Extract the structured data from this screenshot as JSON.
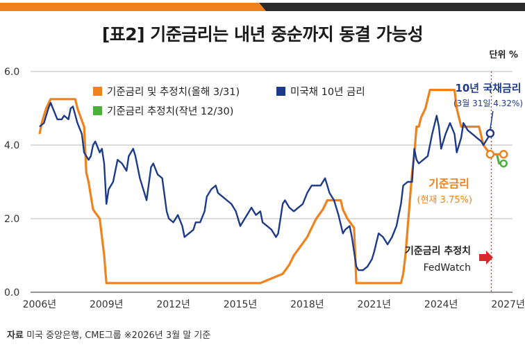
{
  "chart_data": {
    "type": "line",
    "title": "[표2] 기준금리는 내년 중순까지 동결 가능성",
    "unit_label": "단위 %",
    "xlabel": "",
    "ylabel": "",
    "ylim": [
      0,
      6
    ],
    "xlim": [
      2005.6,
      2027.2
    ],
    "yticks": [
      "0.0",
      "2.0",
      "4.0",
      "6.0"
    ],
    "xticks": [
      {
        "x": 2006,
        "label": "2006년"
      },
      {
        "x": 2009,
        "label": "2009년"
      },
      {
        "x": 2012,
        "label": "2012년"
      },
      {
        "x": 2015,
        "label": "2015년"
      },
      {
        "x": 2018,
        "label": "2018년"
      },
      {
        "x": 2021,
        "label": "2021년"
      },
      {
        "x": 2024,
        "label": "2024년"
      },
      {
        "x": 2027,
        "label": "2027년"
      }
    ],
    "grid": "horizontal",
    "legend_position": "top-left",
    "source": "미국 중앙은행, CME그룹  ※2026년 3월 말 기준",
    "source_label": "자료",
    "series": [
      {
        "name": "기준금리 및 추정치(올해 3/31)",
        "color": "#f0821e",
        "x": [
          2006.0,
          2006.1,
          2006.3,
          2006.5,
          2007.6,
          2007.7,
          2008.0,
          2008.1,
          2008.2,
          2008.4,
          2008.7,
          2008.9,
          2009.0,
          2015.9,
          2016.9,
          2017.2,
          2017.4,
          2017.7,
          2018.0,
          2018.2,
          2018.4,
          2018.7,
          2018.9,
          2019.5,
          2019.6,
          2019.8,
          2020.1,
          2020.2,
          2022.2,
          2022.3,
          2022.4,
          2022.5,
          2022.6,
          2022.7,
          2022.8,
          2022.9,
          2023.0,
          2023.1,
          2023.3,
          2023.5,
          2024.6,
          2024.7,
          2024.9,
          2025.7,
          2025.9,
          2026.2
        ],
        "y": [
          4.3,
          4.6,
          5.0,
          5.25,
          5.25,
          5.0,
          4.5,
          3.25,
          3.0,
          2.25,
          2.0,
          1.0,
          0.25,
          0.25,
          0.5,
          0.75,
          1.0,
          1.25,
          1.5,
          1.75,
          2.0,
          2.25,
          2.5,
          2.5,
          2.25,
          2.0,
          1.75,
          0.25,
          0.25,
          0.5,
          1.0,
          1.75,
          2.5,
          3.25,
          3.75,
          4.5,
          4.5,
          4.75,
          5.0,
          5.5,
          5.5,
          5.0,
          4.5,
          4.5,
          4.0,
          3.75
        ]
      },
      {
        "name": "미국채 10년 금리",
        "color": "#1d3a8a",
        "x": [
          2006.0,
          2006.2,
          2006.4,
          2006.5,
          2006.6,
          2006.8,
          2007.0,
          2007.1,
          2007.3,
          2007.4,
          2007.5,
          2007.7,
          2007.9,
          2008.0,
          2008.2,
          2008.3,
          2008.4,
          2008.5,
          2008.7,
          2008.8,
          2008.9,
          2009.0,
          2009.1,
          2009.3,
          2009.5,
          2009.7,
          2009.9,
          2010.0,
          2010.2,
          2010.3,
          2010.5,
          2010.7,
          2010.8,
          2011.0,
          2011.1,
          2011.3,
          2011.5,
          2011.7,
          2011.8,
          2012.0,
          2012.2,
          2012.4,
          2012.5,
          2012.7,
          2012.9,
          2013.0,
          2013.2,
          2013.4,
          2013.5,
          2013.7,
          2013.9,
          2014.0,
          2014.2,
          2014.4,
          2014.6,
          2014.8,
          2015.0,
          2015.2,
          2015.4,
          2015.5,
          2015.7,
          2015.9,
          2016.0,
          2016.2,
          2016.4,
          2016.6,
          2016.7,
          2016.9,
          2017.0,
          2017.2,
          2017.4,
          2017.6,
          2017.8,
          2018.0,
          2018.2,
          2018.4,
          2018.6,
          2018.8,
          2018.9,
          2019.0,
          2019.2,
          2019.4,
          2019.6,
          2019.7,
          2019.9,
          2020.0,
          2020.2,
          2020.3,
          2020.5,
          2020.7,
          2020.9,
          2021.0,
          2021.2,
          2021.4,
          2021.6,
          2021.8,
          2022.0,
          2022.2,
          2022.3,
          2022.5,
          2022.7,
          2022.8,
          2022.9,
          2023.0,
          2023.2,
          2023.4,
          2023.6,
          2023.8,
          2023.9,
          2024.0,
          2024.2,
          2024.4,
          2024.6,
          2024.7,
          2024.9,
          2025.0,
          2025.2,
          2025.4,
          2025.6,
          2025.8,
          2025.9,
          2026.0,
          2026.1,
          2026.2
        ],
        "y": [
          4.5,
          4.6,
          5.0,
          5.15,
          5.0,
          4.7,
          4.7,
          4.8,
          4.7,
          5.0,
          5.05,
          4.6,
          4.3,
          3.8,
          3.6,
          3.7,
          4.0,
          4.1,
          3.8,
          3.9,
          3.5,
          2.4,
          2.8,
          3.0,
          3.6,
          3.5,
          3.3,
          3.7,
          3.9,
          3.7,
          3.1,
          2.7,
          2.5,
          3.4,
          3.5,
          3.2,
          3.1,
          2.2,
          2.0,
          1.9,
          2.1,
          1.8,
          1.5,
          1.6,
          1.7,
          1.9,
          1.9,
          2.2,
          2.6,
          2.8,
          2.9,
          2.7,
          2.6,
          2.5,
          2.4,
          2.2,
          1.8,
          2.0,
          2.2,
          2.3,
          2.1,
          2.2,
          1.9,
          1.8,
          1.7,
          1.5,
          1.6,
          2.4,
          2.5,
          2.3,
          2.2,
          2.3,
          2.4,
          2.7,
          2.9,
          2.9,
          2.9,
          3.1,
          2.9,
          2.7,
          2.5,
          2.1,
          1.6,
          1.7,
          1.8,
          1.5,
          0.7,
          0.6,
          0.6,
          0.7,
          0.9,
          1.1,
          1.6,
          1.5,
          1.3,
          1.5,
          1.8,
          2.4,
          2.9,
          3.0,
          3.0,
          3.9,
          3.6,
          3.5,
          3.6,
          3.7,
          4.3,
          4.8,
          4.5,
          3.9,
          4.3,
          4.6,
          4.3,
          3.8,
          4.2,
          4.6,
          4.4,
          4.3,
          4.2,
          4.1,
          4.0,
          4.1,
          4.2,
          4.32
        ]
      },
      {
        "name": "기준금리 추정치(작년 12/30)",
        "color": "#4caf3a",
        "x": [
          2026.2,
          2026.5,
          2026.6,
          2026.8
        ],
        "y": [
          3.75,
          3.75,
          3.5,
          3.5
        ]
      }
    ],
    "projection": {
      "name": "기준금리 및 추정치(올해 3/31)",
      "color": "#f0821e",
      "x": [
        2026.2,
        2026.5,
        2026.7,
        2026.8
      ],
      "y": [
        3.75,
        3.75,
        3.75,
        3.75
      ]
    },
    "vertical_marker_x": 2026.25,
    "annotations": {
      "bond_title": "10년 국채금리",
      "bond_value": "(3월 31일 4.32%)",
      "rate_title": "기준금리",
      "rate_value": "(현재 3.75%)",
      "fed_title": "기준금리 추정치",
      "fed_source": "FedWatch"
    }
  },
  "colors": {
    "orange": "#f0821e",
    "navy": "#1d3a8a",
    "green": "#4caf3a",
    "red": "#d62a2a",
    "grid": "#b8b8b8",
    "topbar_dark": "#2b2b2b"
  }
}
